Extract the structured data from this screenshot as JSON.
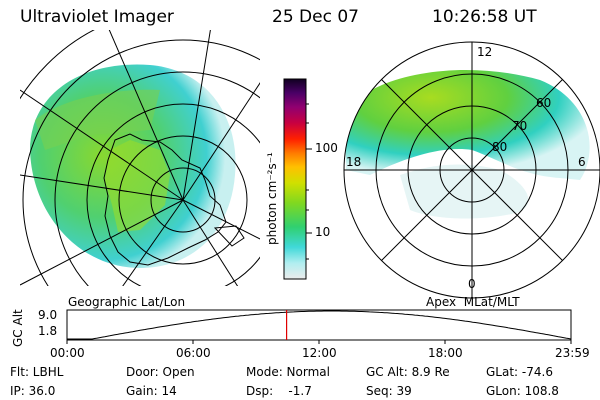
{
  "header": {
    "title": "Ultraviolet Imager",
    "date": "25 Dec 07",
    "time": "10:26:58 UT"
  },
  "left_panel": {
    "label": "Geographic Lat/Lon"
  },
  "right_panel": {
    "label": "Apex  MLat/MLT",
    "mlt_labels": {
      "top": "12",
      "left": "18",
      "right": "6",
      "bottom": "0"
    },
    "mlat_labels": [
      "60",
      "70",
      "80"
    ]
  },
  "colorbar": {
    "unit_label": "photon cm⁻²s⁻¹",
    "ticks": [
      "100",
      "10"
    ],
    "colors": [
      "#1a0033",
      "#3b0066",
      "#800080",
      "#b0004a",
      "#e00020",
      "#ff5a00",
      "#ffa000",
      "#e8d000",
      "#b8e000",
      "#70d020",
      "#30d060",
      "#20c8c0",
      "#60e0e8",
      "#b0f0f0",
      "#e8f4f4"
    ]
  },
  "altitude_plot": {
    "axis_label": "GC Alt",
    "y_ticks": [
      "9.0",
      "1.8"
    ],
    "x_ticks": [
      "00:00",
      "06:00",
      "12:00",
      "18:00",
      "23:59"
    ],
    "marker_color": "#e00000"
  },
  "info": {
    "filter": "Flt: LBHL",
    "door": "Door: Open",
    "mode": "Mode: Normal",
    "gc_alt": "GC Alt: 8.9 Re",
    "glat": "GLat: -74.6",
    "ip": "IP: 36.0",
    "gain": "Gain: 14",
    "dsp": "Dsp:    -1.7",
    "seq": "Seq: 39",
    "glon": "GLon: 108.8"
  }
}
